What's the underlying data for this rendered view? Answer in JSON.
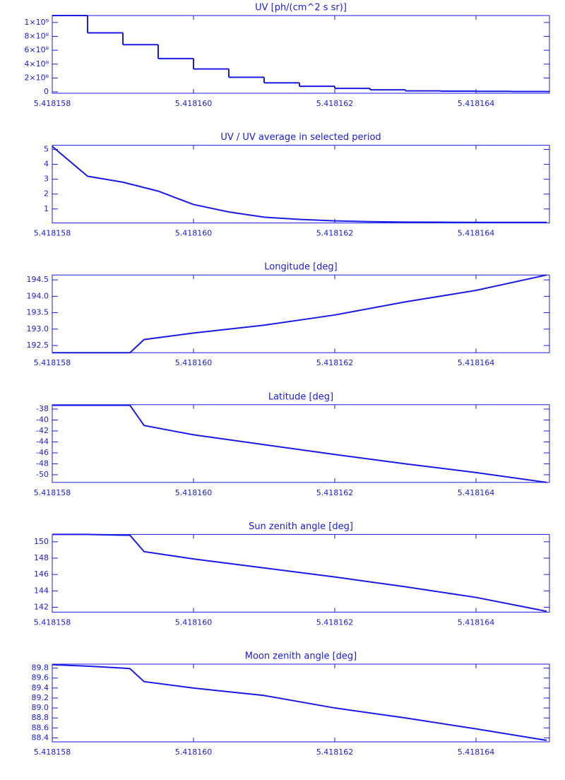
{
  "chart_data": [
    {
      "type": "line",
      "step": true,
      "title": "UV [ph/(cm^2 s sr)]",
      "color": "#1a1ae6",
      "x": [
        5.418158,
        5.4181585,
        5.418159,
        5.4181595,
        5.41816,
        5.4181605,
        5.418161,
        5.4181615,
        5.418162,
        5.4181625,
        5.418163,
        5.4181635,
        5.418164,
        5.4181645,
        5.418165
      ],
      "values": [
        1100000000,
        850000000,
        680000000,
        480000000,
        330000000,
        210000000,
        130000000,
        80000000,
        50000000,
        30000000,
        15000000,
        10000000,
        8000000,
        6000000,
        5000000
      ],
      "xlim": [
        5.418158,
        5.41816504
      ],
      "ylim": [
        -20000000,
        1100000000
      ],
      "xticks": [
        5.418158,
        {
          "value": 5.41816,
          "label": "5.418160"
        },
        5.418162,
        5.418164
      ],
      "yticks": [
        0,
        {
          "value": 200000000,
          "label": "2×10⁸"
        },
        {
          "value": 400000000,
          "label": "4×10⁸"
        },
        {
          "value": 600000000,
          "label": "6×10⁸"
        },
        {
          "value": 800000000,
          "label": "8×10⁸"
        },
        {
          "value": 1000000000,
          "label": "1×10⁹"
        }
      ]
    },
    {
      "type": "line",
      "title": "UV / UV average in selected period",
      "color": "#1a1ae6",
      "x": [
        5.418158,
        5.4181585,
        5.418159,
        5.4181595,
        5.41816,
        5.4181605,
        5.418161,
        5.4181615,
        5.418162,
        5.4181625,
        5.418163,
        5.4181635,
        5.418164,
        5.4181645,
        5.418165
      ],
      "values": [
        5.2,
        3.2,
        2.8,
        2.2,
        1.3,
        0.8,
        0.45,
        0.3,
        0.2,
        0.15,
        0.12,
        0.11,
        0.1,
        0.1,
        0.1
      ],
      "xlim": [
        5.418158,
        5.41816504
      ],
      "ylim": [
        0.06,
        5.28
      ],
      "xticks": [
        5.418158,
        {
          "value": 5.41816,
          "label": "5.418160"
        },
        5.418162,
        5.418164
      ],
      "yticks": [
        1,
        2,
        3,
        4,
        5
      ]
    },
    {
      "type": "line",
      "title": "Longitude [deg]",
      "color": "#1a1ae6",
      "x": [
        5.418158,
        5.4181585,
        5.418159,
        5.4181591,
        5.4181593,
        5.41816,
        5.418161,
        5.418162,
        5.418163,
        5.418164,
        5.418165
      ],
      "values": [
        192.28,
        192.28,
        192.28,
        192.28,
        192.68,
        192.88,
        193.12,
        193.43,
        193.83,
        194.18,
        194.65
      ],
      "xlim": [
        5.418158,
        5.41816504
      ],
      "ylim": [
        192.28,
        194.65
      ],
      "xticks": [
        5.418158,
        {
          "value": 5.41816,
          "label": "5.418160"
        },
        5.418162,
        5.418164
      ],
      "yticks": [
        192.5,
        {
          "value": 193,
          "label": "193.0"
        },
        193.5,
        {
          "value": 194,
          "label": "194.0"
        },
        194.5
      ]
    },
    {
      "type": "line",
      "title": "Latitude [deg]",
      "color": "#1a1ae6",
      "x": [
        5.418158,
        5.4181585,
        5.418159,
        5.4181591,
        5.4181593,
        5.41816,
        5.418161,
        5.418162,
        5.418163,
        5.418164,
        5.418165
      ],
      "values": [
        -37.3,
        -37.3,
        -37.3,
        -37.3,
        -41,
        -42.7,
        -44.5,
        -46.3,
        -48,
        -49.6,
        -51.4
      ],
      "xlim": [
        5.418158,
        5.41816504
      ],
      "ylim": [
        -51.4,
        -37.2
      ],
      "xticks": [
        5.418158,
        {
          "value": 5.41816,
          "label": "5.418160"
        },
        5.418162,
        5.418164
      ],
      "yticks": [
        -50,
        -48,
        -46,
        -44,
        -42,
        -40,
        -38
      ]
    },
    {
      "type": "line",
      "title": "Sun zenith angle [deg]",
      "color": "#1a1ae6",
      "x": [
        5.418158,
        5.4181585,
        5.418159,
        5.4181591,
        5.4181593,
        5.41816,
        5.418161,
        5.418162,
        5.418163,
        5.418164,
        5.418165
      ],
      "values": [
        150.9,
        150.9,
        150.8,
        150.8,
        148.8,
        147.9,
        146.8,
        145.7,
        144.5,
        143.2,
        141.5
      ],
      "xlim": [
        5.418158,
        5.41816504
      ],
      "ylim": [
        141.4,
        150.9
      ],
      "xticks": [
        5.418158,
        {
          "value": 5.41816,
          "label": "5.418160"
        },
        5.418162,
        5.418164
      ],
      "yticks": [
        142,
        144,
        146,
        148,
        150
      ]
    },
    {
      "type": "line",
      "title": "Moon zenith angle [deg]",
      "color": "#1a1ae6",
      "x": [
        5.418158,
        5.4181585,
        5.418159,
        5.4181591,
        5.4181593,
        5.41816,
        5.418161,
        5.418162,
        5.418163,
        5.418164,
        5.418165
      ],
      "values": [
        89.87,
        89.84,
        89.8,
        89.79,
        89.53,
        89.4,
        89.25,
        89,
        88.8,
        88.58,
        88.35
      ],
      "xlim": [
        5.418158,
        5.41816504
      ],
      "ylim": [
        88.32,
        89.88
      ],
      "xticks": [
        5.418158,
        {
          "value": 5.41816,
          "label": "5.418160"
        },
        5.418162,
        5.418164
      ],
      "yticks": [
        88.4,
        88.6,
        88.8,
        {
          "value": 89,
          "label": "89.0"
        },
        89.2,
        89.4,
        89.6,
        89.8
      ]
    }
  ]
}
